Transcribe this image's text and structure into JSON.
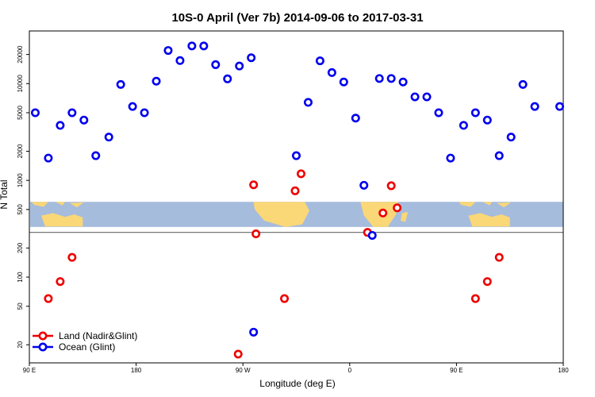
{
  "chart_data": {
    "type": "scatter",
    "title": "10S-0 April (Ver 7b)   2014-09-06 to 2017-03-31",
    "xlabel": "Longitude (deg E)",
    "ylabel": "N Total",
    "y_scale": "log",
    "x_range": [
      90,
      540
    ],
    "y_range": [
      13,
      35000
    ],
    "x_ticks": [
      {
        "value": 90,
        "label": "90 E"
      },
      {
        "value": 180,
        "label": "180"
      },
      {
        "value": 270,
        "label": "90 W"
      },
      {
        "value": 360,
        "label": "0"
      },
      {
        "value": 450,
        "label": "90 E"
      },
      {
        "value": 540,
        "label": "180"
      }
    ],
    "y_ticks": [
      {
        "value": 20,
        "label": "20"
      },
      {
        "value": 50,
        "label": "50"
      },
      {
        "value": 100,
        "label": "100"
      },
      {
        "value": 200,
        "label": "200"
      },
      {
        "value": 500,
        "label": "500"
      },
      {
        "value": 1000,
        "label": "1000"
      },
      {
        "value": 2000,
        "label": "2000"
      },
      {
        "value": 5000,
        "label": "5000"
      },
      {
        "value": 10000,
        "label": "10000"
      },
      {
        "value": 20000,
        "label": "20000"
      }
    ],
    "reference_line_y": 290,
    "map_band": {
      "y_from": 330,
      "y_to": 600
    },
    "legend_position": "bottom-left",
    "series": [
      {
        "name": "Land (Nadir&Glint)",
        "color": "#ee0000",
        "points": [
          [
            106,
            60
          ],
          [
            116,
            90
          ],
          [
            126,
            160
          ],
          [
            266,
            16
          ],
          [
            279,
            900
          ],
          [
            281,
            280
          ],
          [
            305,
            60
          ],
          [
            314,
            780
          ],
          [
            319,
            1170
          ],
          [
            375,
            290
          ],
          [
            388,
            460
          ],
          [
            395,
            880
          ],
          [
            400,
            520
          ],
          [
            466,
            60
          ],
          [
            476,
            90
          ],
          [
            486,
            160
          ]
        ]
      },
      {
        "name": "Ocean (Glint)",
        "color": "#0000ee",
        "points": [
          [
            95,
            5000
          ],
          [
            106,
            1700
          ],
          [
            116,
            3700
          ],
          [
            126,
            5000
          ],
          [
            136,
            4200
          ],
          [
            146,
            1800
          ],
          [
            157,
            2800
          ],
          [
            167,
            9800
          ],
          [
            177,
            5800
          ],
          [
            187,
            5000
          ],
          [
            197,
            10600
          ],
          [
            207,
            22000
          ],
          [
            217,
            17300
          ],
          [
            227,
            24500
          ],
          [
            237,
            24500
          ],
          [
            247,
            15700
          ],
          [
            257,
            11200
          ],
          [
            267,
            15200
          ],
          [
            277,
            18500
          ],
          [
            279,
            27
          ],
          [
            315,
            1800
          ],
          [
            325,
            6400
          ],
          [
            335,
            17200
          ],
          [
            345,
            13000
          ],
          [
            355,
            10400
          ],
          [
            365,
            4400
          ],
          [
            372,
            890
          ],
          [
            379,
            270
          ],
          [
            385,
            11300
          ],
          [
            395,
            11300
          ],
          [
            405,
            10400
          ],
          [
            415,
            7300
          ],
          [
            425,
            7300
          ],
          [
            435,
            5000
          ],
          [
            445,
            1700
          ],
          [
            456,
            3700
          ],
          [
            466,
            5000
          ],
          [
            476,
            4200
          ],
          [
            486,
            1800
          ],
          [
            496,
            2800
          ],
          [
            506,
            9800
          ],
          [
            516,
            5800
          ],
          [
            537,
            5800
          ]
        ]
      }
    ]
  },
  "legend": {
    "land_label": "Land (Nadir&Glint)",
    "ocean_label": "Ocean (Glint)"
  }
}
